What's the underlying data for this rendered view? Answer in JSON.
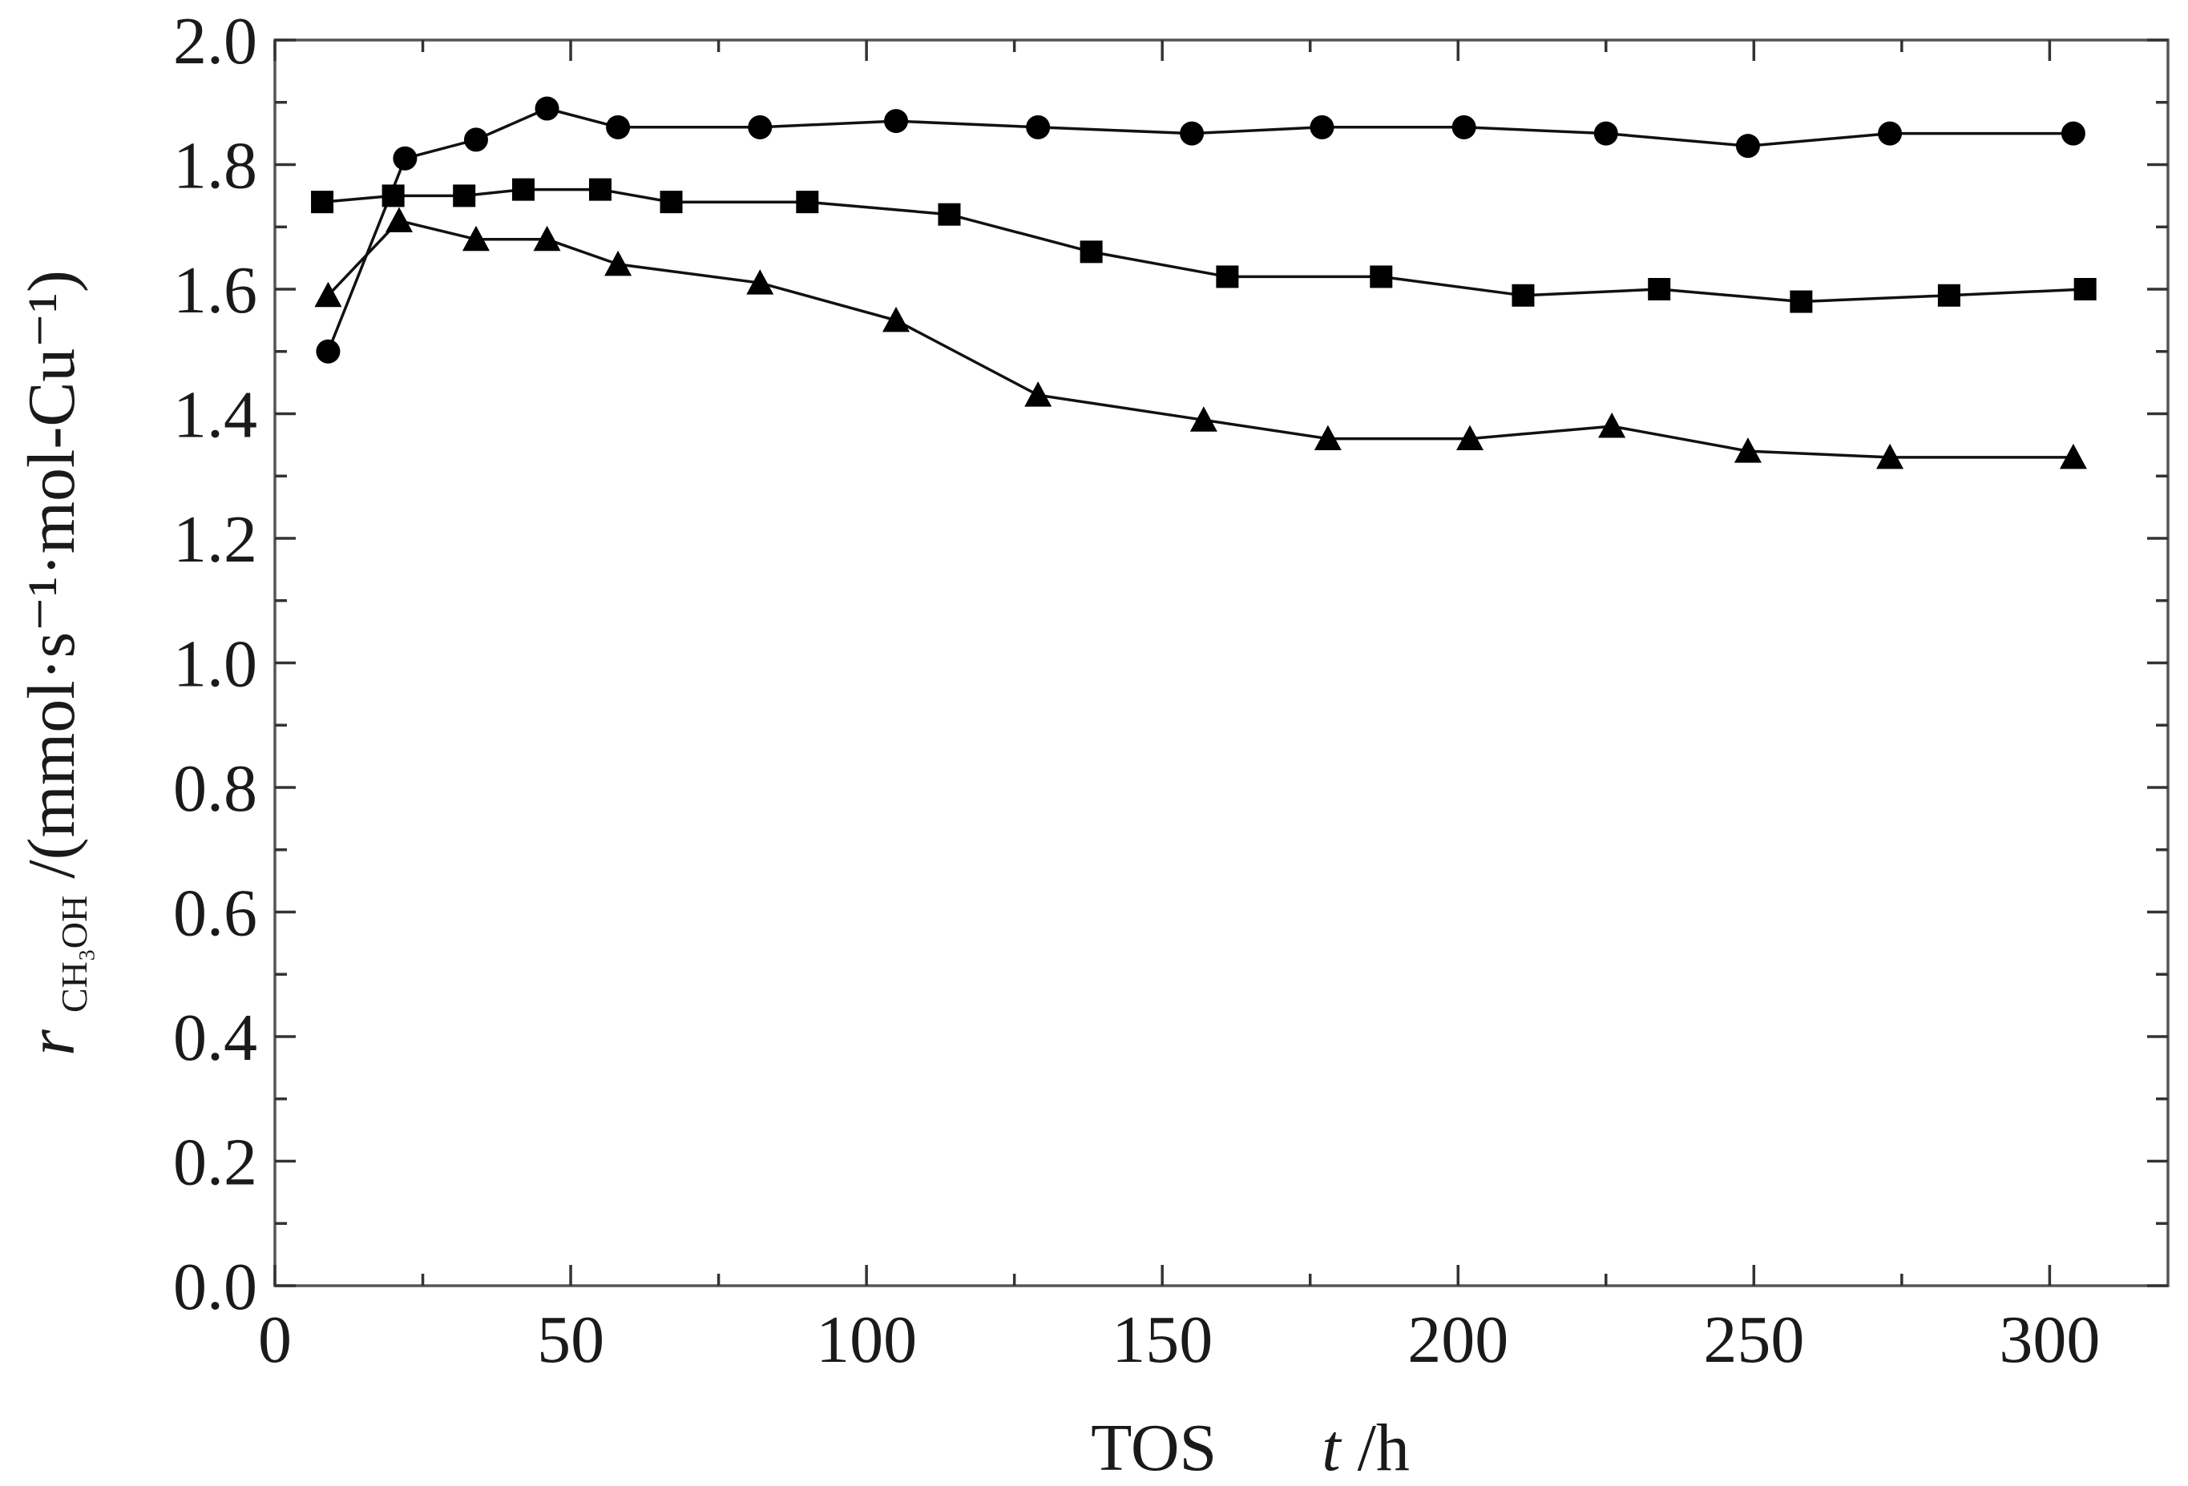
{
  "chart_data": {
    "type": "line",
    "xlabel": {
      "prefix": "TOS",
      "var": "t",
      "unit": " /h"
    },
    "ylabel": {
      "var": "r",
      "sub": "CH₃OH",
      "unit": "/(mmol·s⁻¹·mol-Cu⁻¹)"
    },
    "xlim": [
      0,
      320
    ],
    "ylim": [
      0.0,
      2.0
    ],
    "x_major_ticks": [
      0,
      50,
      100,
      150,
      200,
      250,
      300
    ],
    "x_tick_labels": [
      "0",
      "50",
      "100",
      "150",
      "200",
      "250",
      "300"
    ],
    "x_minor_ticks": [
      25,
      75,
      125,
      175,
      225,
      275
    ],
    "y_major_ticks": [
      0.0,
      0.2,
      0.4,
      0.6,
      0.8,
      1.0,
      1.2,
      1.4,
      1.6,
      1.8,
      2.0
    ],
    "y_tick_labels": [
      "0.0",
      "0.2",
      "0.4",
      "0.6",
      "0.8",
      "1.0",
      "1.2",
      "1.4",
      "1.6",
      "1.8",
      "2.0"
    ],
    "y_minor_ticks": [
      0.1,
      0.3,
      0.5,
      0.7,
      0.9,
      1.1,
      1.3,
      1.5,
      1.7,
      1.9
    ],
    "grid": false,
    "legend": "none",
    "series": [
      {
        "marker": "circle",
        "color": "#000000",
        "x": [
          9,
          22,
          34,
          46,
          58,
          82,
          105,
          129,
          155,
          177,
          201,
          225,
          249,
          273,
          304
        ],
        "y": [
          1.5,
          1.81,
          1.84,
          1.89,
          1.86,
          1.86,
          1.87,
          1.86,
          1.85,
          1.86,
          1.86,
          1.85,
          1.83,
          1.85,
          1.85
        ]
      },
      {
        "marker": "square",
        "color": "#000000",
        "x": [
          8,
          20,
          32,
          42,
          55,
          67,
          90,
          114,
          138,
          161,
          187,
          211,
          234,
          258,
          283,
          306
        ],
        "y": [
          1.74,
          1.75,
          1.75,
          1.76,
          1.76,
          1.74,
          1.74,
          1.72,
          1.66,
          1.62,
          1.62,
          1.59,
          1.6,
          1.58,
          1.59,
          1.6
        ]
      },
      {
        "marker": "triangle",
        "color": "#000000",
        "x": [
          9,
          21,
          34,
          46,
          58,
          82,
          105,
          129,
          157,
          178,
          202,
          226,
          249,
          273,
          304
        ],
        "y": [
          1.59,
          1.71,
          1.68,
          1.68,
          1.64,
          1.61,
          1.55,
          1.43,
          1.39,
          1.36,
          1.36,
          1.38,
          1.34,
          1.33,
          1.33
        ]
      }
    ]
  }
}
